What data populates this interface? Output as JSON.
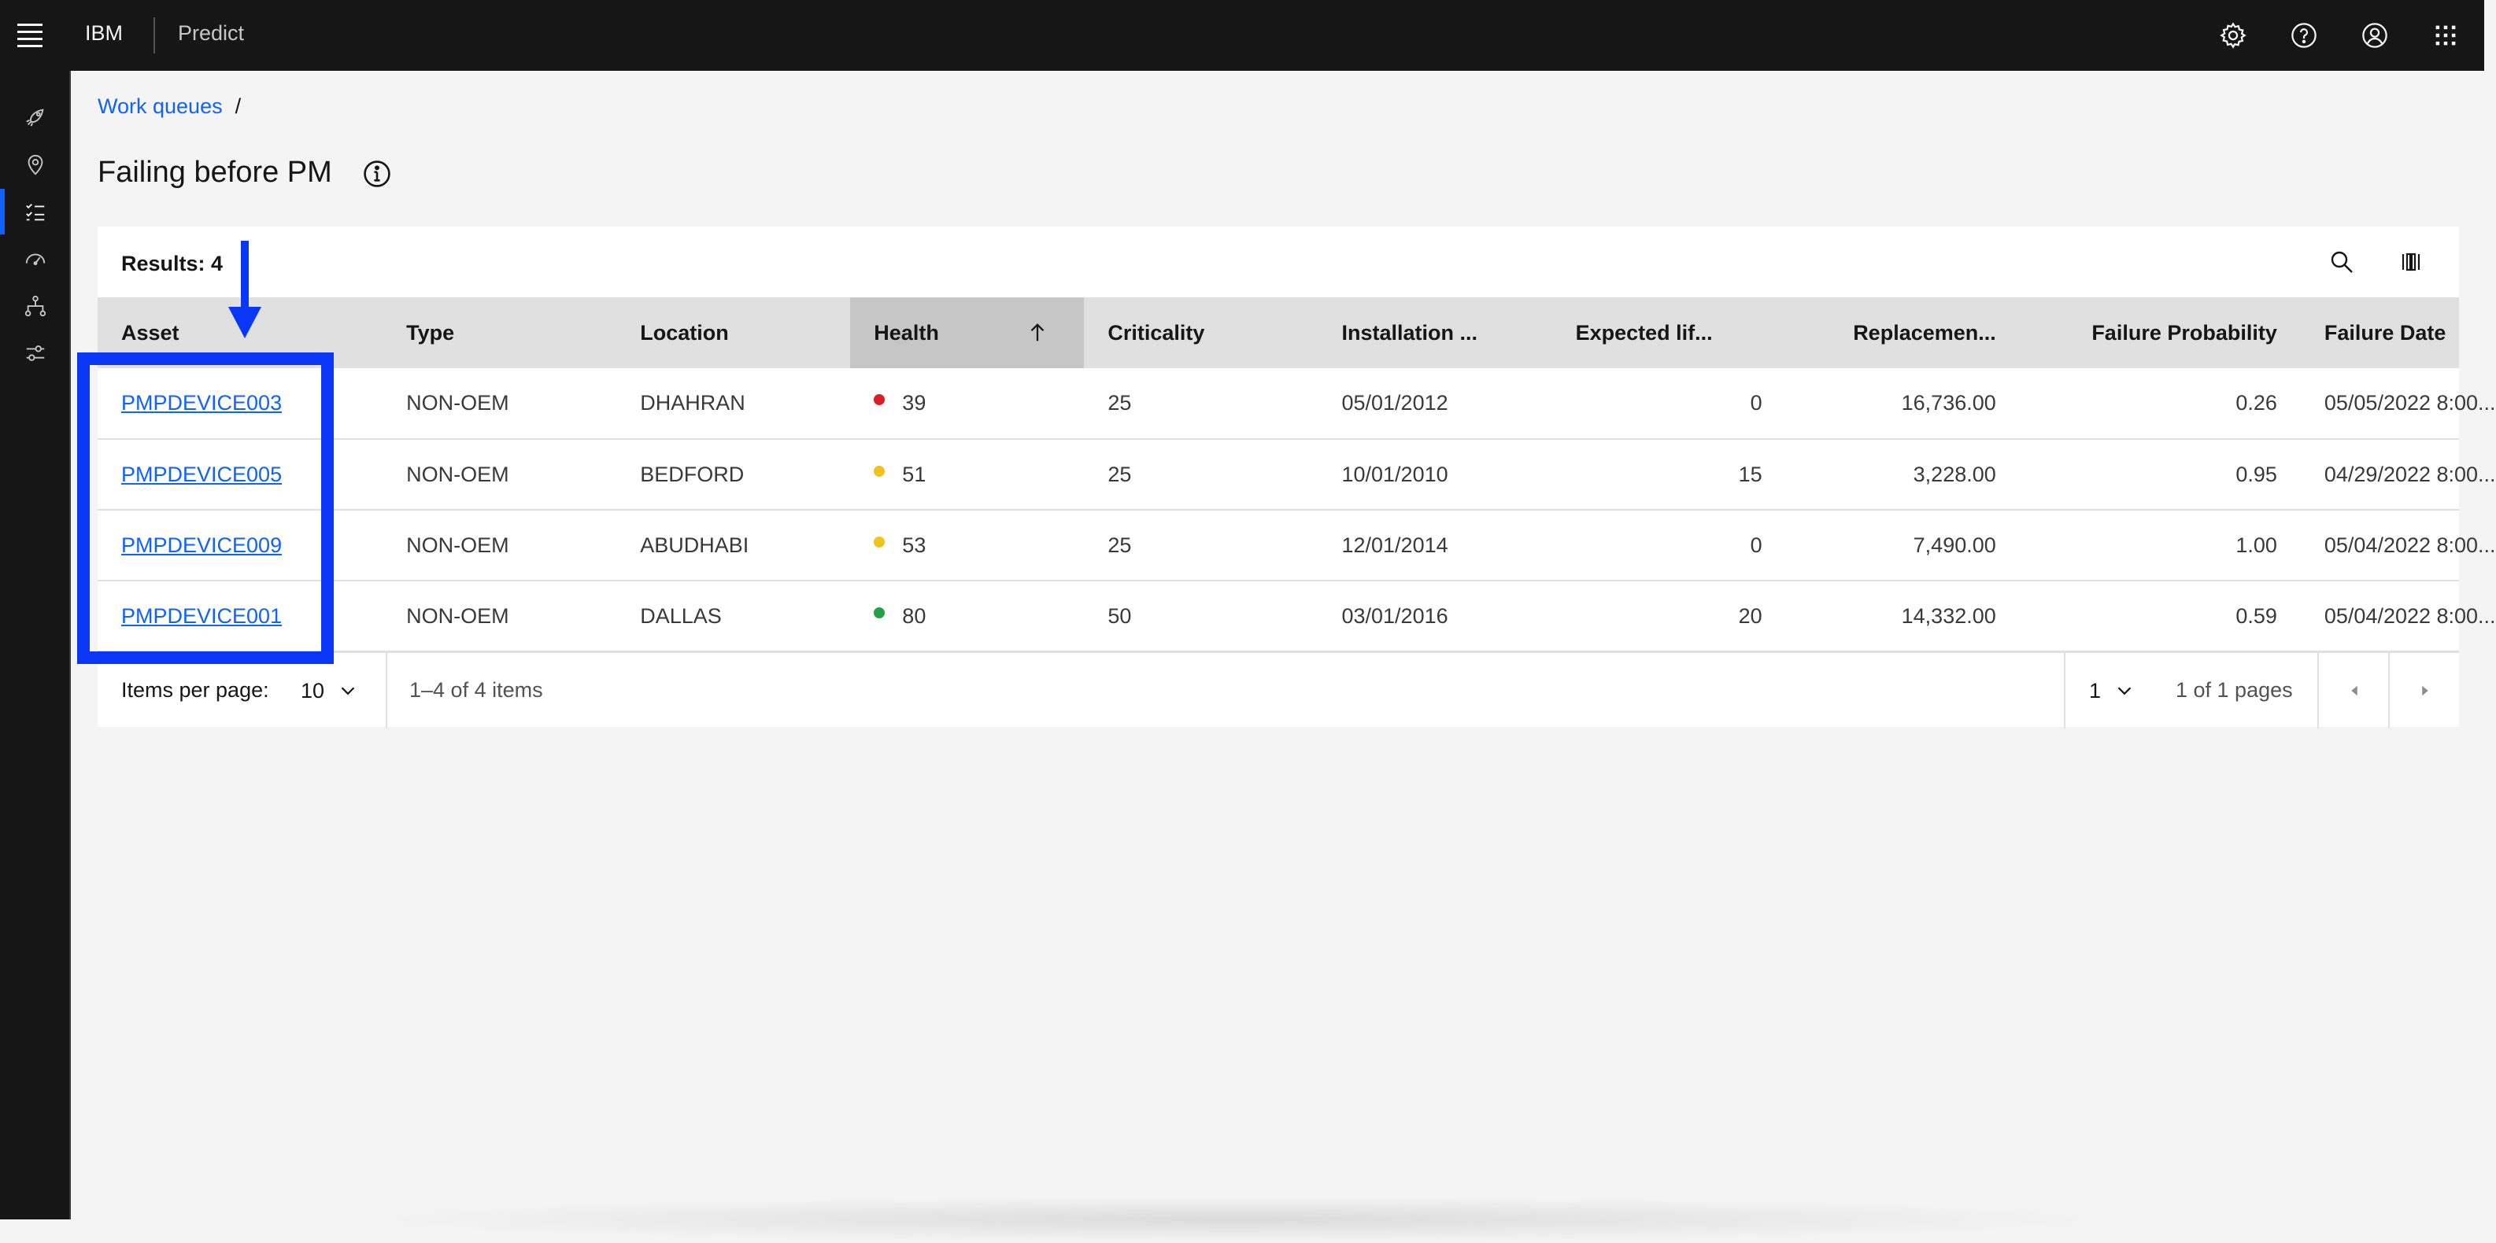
{
  "header": {
    "brand": "IBM",
    "product": "Predict",
    "icons": [
      "settings-icon",
      "help-icon",
      "user-avatar-icon",
      "app-switcher-icon"
    ]
  },
  "rail": {
    "items": [
      "rocket-icon",
      "location-icon",
      "task-list-icon",
      "dashboard-gauge-icon",
      "hierarchy-icon",
      "settings-adjust-icon"
    ],
    "active_index": 2
  },
  "breadcrumb": {
    "link": "Work queues",
    "separator": "/"
  },
  "page": {
    "title": "Failing before PM"
  },
  "table": {
    "results_label": "Results: 4",
    "columns": [
      "Asset",
      "Type",
      "Location",
      "Health",
      "Criticality",
      "Installation ...",
      "Expected lif...",
      "Replacemen...",
      "Failure Probability",
      "Failure Date"
    ],
    "sorted_column": "Health",
    "sort_direction": "ascending",
    "rows": [
      {
        "asset": "PMPDEVICE003",
        "type": "NON-OEM",
        "location": "DHAHRAN",
        "health_color": "#da1e28",
        "health": "39",
        "criticality": "25",
        "installation": "05/01/2012",
        "expected_life": "0",
        "replacement": "16,736.00",
        "failure_probability": "0.26",
        "failure_date": "05/05/2022 8:00..."
      },
      {
        "asset": "PMPDEVICE005",
        "type": "NON-OEM",
        "location": "BEDFORD",
        "health_color": "#f1c21b",
        "health": "51",
        "criticality": "25",
        "installation": "10/01/2010",
        "expected_life": "15",
        "replacement": "3,228.00",
        "failure_probability": "0.95",
        "failure_date": "04/29/2022 8:00..."
      },
      {
        "asset": "PMPDEVICE009",
        "type": "NON-OEM",
        "location": "ABUDHABI",
        "health_color": "#f1c21b",
        "health": "53",
        "criticality": "25",
        "installation": "12/01/2014",
        "expected_life": "0",
        "replacement": "7,490.00",
        "failure_probability": "1.00",
        "failure_date": "05/04/2022 8:00..."
      },
      {
        "asset": "PMPDEVICE001",
        "type": "NON-OEM",
        "location": "DALLAS",
        "health_color": "#24a148",
        "health": "80",
        "criticality": "50",
        "installation": "03/01/2016",
        "expected_life": "20",
        "replacement": "14,332.00",
        "failure_probability": "0.59",
        "failure_date": "05/04/2022 8:00..."
      }
    ]
  },
  "pagination": {
    "items_per_page_label": "Items per page:",
    "items_per_page": "10",
    "range": "1–4 of 4 items",
    "page": "1",
    "pages_of": "1 of 1 pages"
  },
  "annotation": {
    "color": "#0a36f5"
  }
}
